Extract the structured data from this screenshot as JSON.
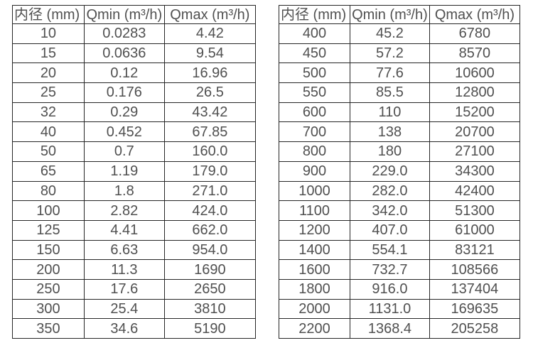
{
  "page": {
    "background": "#ffffff"
  },
  "colors": {
    "text": "#505050",
    "border": "#262626",
    "background": "#ffffff"
  },
  "tables": [
    {
      "name": "flow-range-table-small-diameters",
      "headers": [
        "内径 (mm)",
        "Qmin (m³/h)",
        "Qmax (m³/h)"
      ],
      "rows": [
        [
          "10",
          "0.0283",
          "4.42"
        ],
        [
          "15",
          "0.0636",
          "9.54"
        ],
        [
          "20",
          "0.12",
          "16.96"
        ],
        [
          "25",
          "0.176",
          "26.5"
        ],
        [
          "32",
          "0.29",
          "43.42"
        ],
        [
          "40",
          "0.452",
          "67.85"
        ],
        [
          "50",
          "0.7",
          "160.0"
        ],
        [
          "65",
          "1.19",
          "179.0"
        ],
        [
          "80",
          "1.8",
          "271.0"
        ],
        [
          "100",
          "2.82",
          "424.0"
        ],
        [
          "125",
          "4.41",
          "662.0"
        ],
        [
          "150",
          "6.63",
          "954.0"
        ],
        [
          "200",
          "11.3",
          "1690"
        ],
        [
          "250",
          "17.6",
          "2650"
        ],
        [
          "300",
          "25.4",
          "3810"
        ],
        [
          "350",
          "34.6",
          "5190"
        ]
      ]
    },
    {
      "name": "flow-range-table-large-diameters",
      "headers": [
        "内径 (mm)",
        "Qmin (m³/h)",
        "Qmax (m³/h)"
      ],
      "rows": [
        [
          "400",
          "45.2",
          "6780"
        ],
        [
          "450",
          "57.2",
          "8570"
        ],
        [
          "500",
          "77.6",
          "10600"
        ],
        [
          "550",
          "85.5",
          "12800"
        ],
        [
          "600",
          "110",
          "15200"
        ],
        [
          "700",
          "138",
          "20700"
        ],
        [
          "800",
          "180",
          "27100"
        ],
        [
          "900",
          "229.0",
          "34300"
        ],
        [
          "1000",
          "282.0",
          "42400"
        ],
        [
          "1100",
          "342.0",
          "51300"
        ],
        [
          "1200",
          "407.0",
          "61000"
        ],
        [
          "1400",
          "554.1",
          "83121"
        ],
        [
          "1600",
          "732.7",
          "108566"
        ],
        [
          "1800",
          "916.0",
          "137404"
        ],
        [
          "2000",
          "1131.0",
          "169635"
        ],
        [
          "2200",
          "1368.4",
          "205258"
        ]
      ]
    }
  ]
}
